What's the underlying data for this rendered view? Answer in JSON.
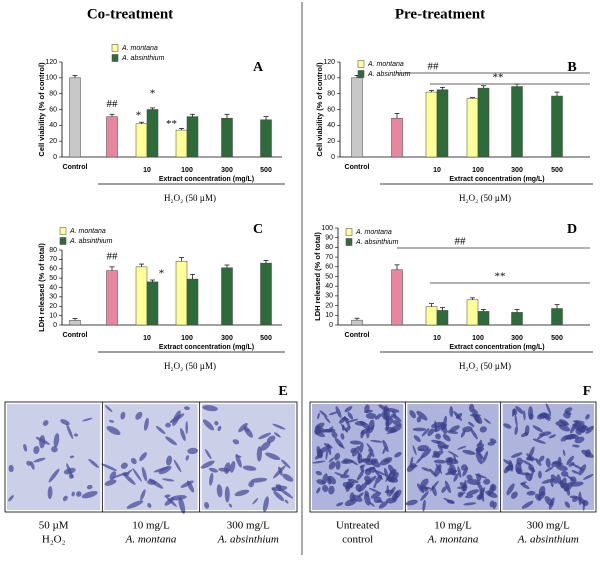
{
  "headers": {
    "left": "Co-treatment",
    "right": "Pre-treatment"
  },
  "chart_data": [
    {
      "type": "bar",
      "panel": "A",
      "y_label": "Cell viability (% of control)",
      "x_label": "Extract concentration (mg/L)",
      "treatment_label": "H₂O₂ (50 µM)",
      "categories": [
        "Control",
        null,
        "10",
        "100",
        "300",
        "500"
      ],
      "series": [
        {
          "color": "#c8c8c8",
          "values": [
            100,
            null,
            null,
            null,
            null,
            null
          ],
          "errors": [
            3,
            null,
            null,
            null,
            null,
            null
          ]
        },
        {
          "color": "#e8869f",
          "values": [
            null,
            51,
            null,
            null,
            null,
            null
          ],
          "errors": [
            null,
            3,
            null,
            null,
            null,
            null
          ]
        },
        {
          "name": "A. montana",
          "color": "#ffff99",
          "values": [
            null,
            null,
            42,
            34,
            null,
            null
          ],
          "errors": [
            null,
            null,
            2,
            2,
            null,
            null
          ]
        },
        {
          "name": "A. absinthium",
          "color": "#2e6b3a",
          "values": [
            null,
            null,
            60,
            51,
            49,
            47
          ],
          "errors": [
            null,
            null,
            2,
            3,
            5,
            4
          ]
        }
      ],
      "ylim": [
        0,
        120
      ],
      "yticks": [
        0,
        20,
        40,
        60,
        80,
        100,
        120
      ],
      "annotations": [
        "##",
        "*",
        "*",
        "**"
      ]
    },
    {
      "type": "bar",
      "panel": "B",
      "y_label": "Cell viability (% of control)",
      "x_label": "Extract concentration (mg/L)",
      "treatment_label": "H₂O₂ (50 µM)",
      "categories": [
        "Control",
        null,
        "10",
        "100",
        "300",
        "500"
      ],
      "series": [
        {
          "color": "#c8c8c8",
          "values": [
            100,
            null,
            null,
            null,
            null,
            null
          ],
          "errors": [
            3,
            null,
            null,
            null,
            null,
            null
          ]
        },
        {
          "color": "#e8869f",
          "values": [
            null,
            49,
            null,
            null,
            null,
            null
          ],
          "errors": [
            null,
            6,
            null,
            null,
            null,
            null
          ]
        },
        {
          "name": "A. montana",
          "color": "#ffff99",
          "values": [
            null,
            null,
            82,
            74,
            null,
            null
          ],
          "errors": [
            null,
            null,
            2,
            1,
            null,
            null
          ]
        },
        {
          "name": "A. absinthium",
          "color": "#2e6b3a",
          "values": [
            null,
            null,
            85,
            87,
            89,
            77
          ],
          "errors": [
            null,
            null,
            3,
            3,
            3,
            5
          ]
        }
      ],
      "ylim": [
        0,
        120
      ],
      "yticks": [
        0,
        20,
        40,
        60,
        80,
        100,
        120
      ],
      "annotations": [
        "##",
        "**"
      ]
    },
    {
      "type": "bar",
      "panel": "C",
      "y_label": "LDH released (% of total)",
      "x_label": "Extract concentration (mg/L)",
      "treatment_label": "H₂O₂ (50 µM)",
      "categories": [
        "Control",
        null,
        "10",
        "100",
        "300",
        "500"
      ],
      "series": [
        {
          "color": "#c8c8c8",
          "values": [
            5,
            null,
            null,
            null,
            null,
            null
          ],
          "errors": [
            2,
            null,
            null,
            null,
            null,
            null
          ]
        },
        {
          "color": "#e8869f",
          "values": [
            null,
            58,
            null,
            null,
            null,
            null
          ],
          "errors": [
            null,
            4,
            null,
            null,
            null,
            null
          ]
        },
        {
          "name": "A. montana",
          "color": "#ffff99",
          "values": [
            null,
            null,
            62,
            68,
            null,
            null
          ],
          "errors": [
            null,
            null,
            3,
            4,
            null,
            null
          ]
        },
        {
          "name": "A. absinthium",
          "color": "#2e6b3a",
          "values": [
            null,
            null,
            46,
            49,
            61,
            66
          ],
          "errors": [
            null,
            null,
            2,
            5,
            3,
            3
          ]
        }
      ],
      "ylim": [
        0,
        80
      ],
      "yticks": [
        0,
        10,
        20,
        30,
        40,
        50,
        60,
        70,
        80
      ],
      "annotations": [
        "##",
        "*"
      ]
    },
    {
      "type": "bar",
      "panel": "D",
      "y_label": "LDH released (% of total)",
      "x_label": "Extract concentration (mg/L)",
      "treatment_label": "H₂O₂ (50 µM)",
      "categories": [
        "Control",
        null,
        "10",
        "100",
        "300",
        "500"
      ],
      "series": [
        {
          "color": "#c8c8c8",
          "values": [
            5,
            null,
            null,
            null,
            null,
            null
          ],
          "errors": [
            2,
            null,
            null,
            null,
            null,
            null
          ]
        },
        {
          "color": "#e8869f",
          "values": [
            null,
            57,
            null,
            null,
            null,
            null
          ],
          "errors": [
            null,
            5,
            null,
            null,
            null,
            null
          ]
        },
        {
          "name": "A. montana",
          "color": "#ffff99",
          "values": [
            null,
            null,
            19,
            26,
            null,
            null
          ],
          "errors": [
            null,
            null,
            3,
            2,
            null,
            null
          ]
        },
        {
          "name": "A. absinthium",
          "color": "#2e6b3a",
          "values": [
            null,
            null,
            15,
            14,
            13,
            17
          ],
          "errors": [
            null,
            null,
            3,
            2,
            3,
            4
          ]
        }
      ],
      "ylim": [
        0,
        100
      ],
      "yticks": [
        0,
        10,
        20,
        30,
        40,
        50,
        60,
        70,
        80,
        90,
        100
      ],
      "annotations": [
        "##",
        "**"
      ]
    }
  ],
  "images": [
    {
      "panel": "E",
      "captions": [
        [
          "50 µM",
          "H₂O₂"
        ],
        [
          "10 mg/L",
          "A. montana"
        ],
        [
          "300 mg/L",
          "A. absinthium"
        ]
      ]
    },
    {
      "panel": "F",
      "captions": [
        [
          "Untreated",
          "control"
        ],
        [
          "10 mg/L",
          "A. montana"
        ],
        [
          "300 mg/L",
          "A. absinthium"
        ]
      ]
    }
  ]
}
